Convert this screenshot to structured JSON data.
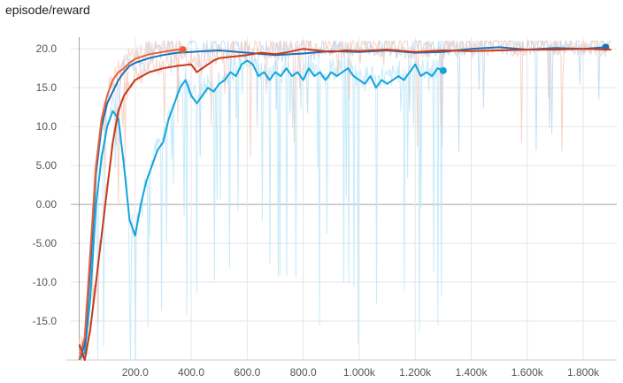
{
  "header": {
    "title": "episode/reward"
  },
  "chart_data": {
    "type": "line",
    "title": "episode/reward",
    "xlabel": "",
    "ylabel": "",
    "xlim": [
      -30,
      1920
    ],
    "ylim": [
      -20,
      21.5
    ],
    "x_ticks": [
      {
        "value": 200,
        "label": "200.0"
      },
      {
        "value": 400,
        "label": "400.0"
      },
      {
        "value": 600,
        "label": "600.0"
      },
      {
        "value": 800,
        "label": "800.0"
      },
      {
        "value": 1000,
        "label": "1.000k"
      },
      {
        "value": 1200,
        "label": "1.200k"
      },
      {
        "value": 1400,
        "label": "1.400k"
      },
      {
        "value": 1600,
        "label": "1.600k"
      },
      {
        "value": 1800,
        "label": "1.800k"
      }
    ],
    "y_ticks": [
      {
        "value": 20,
        "label": "20.0"
      },
      {
        "value": 15,
        "label": "15.0"
      },
      {
        "value": 10,
        "label": "10.0"
      },
      {
        "value": 5,
        "label": "5.00"
      },
      {
        "value": 0,
        "label": "0.00"
      },
      {
        "value": -5,
        "label": "-5.00"
      },
      {
        "value": -10,
        "label": "-10.0"
      },
      {
        "value": -15,
        "label": "-15.0"
      }
    ],
    "grid": true,
    "series": [
      {
        "color": "#12a4dc",
        "end_marker": true,
        "x": [
          0,
          20,
          40,
          60,
          80,
          100,
          120,
          140,
          160,
          180,
          200,
          220,
          240,
          260,
          280,
          300,
          320,
          340,
          360,
          380,
          400,
          420,
          440,
          460,
          480,
          500,
          520,
          540,
          560,
          580,
          600,
          620,
          640,
          660,
          680,
          700,
          720,
          740,
          760,
          780,
          800,
          820,
          840,
          860,
          880,
          900,
          920,
          940,
          960,
          980,
          1000,
          1020,
          1040,
          1060,
          1080,
          1100,
          1120,
          1140,
          1160,
          1180,
          1200,
          1220,
          1240,
          1260,
          1280,
          1300
        ],
        "y": [
          -20,
          -19,
          -12,
          0,
          6,
          10,
          12,
          11,
          5,
          -2,
          -4,
          0,
          3,
          5,
          7,
          8,
          11,
          13,
          15,
          16,
          14,
          13,
          14,
          15,
          14.5,
          15.5,
          16,
          17,
          16.5,
          18,
          18.5,
          18,
          16.5,
          17,
          16,
          17,
          16.5,
          17.5,
          16.5,
          17,
          16,
          17.5,
          16.5,
          17,
          16,
          17,
          16.5,
          17,
          17.5,
          16.5,
          16,
          15.5,
          16.5,
          15,
          16,
          15.5,
          16,
          16.5,
          16,
          17,
          18,
          16.5,
          17,
          16.5,
          17.5,
          17.2
        ]
      },
      {
        "color": "#1f6fb4",
        "end_marker": true,
        "x": [
          0,
          20,
          40,
          60,
          80,
          100,
          120,
          140,
          160,
          180,
          200,
          250,
          300,
          350,
          400,
          450,
          500,
          600,
          700,
          800,
          900,
          1000,
          1100,
          1200,
          1300,
          1400,
          1500,
          1600,
          1700,
          1800,
          1880
        ],
        "y": [
          -20,
          -18,
          -8,
          4,
          10,
          13,
          14.5,
          16,
          17,
          17.8,
          18.2,
          18.8,
          19.2,
          19.5,
          19.6,
          19.7,
          19.8,
          19.5,
          19.2,
          19.4,
          19.7,
          19.6,
          19.8,
          19.5,
          19.6,
          20,
          20.2,
          19.9,
          20.1,
          20,
          20.2
        ]
      },
      {
        "color": "#e8613a",
        "end_marker": true,
        "x": [
          0,
          20,
          40,
          60,
          80,
          100,
          120,
          140,
          160,
          180,
          200,
          250,
          300,
          350,
          370
        ],
        "y": [
          -20,
          -17,
          -6,
          5,
          11,
          14,
          16,
          17,
          17.5,
          18.2,
          18.7,
          19.3,
          19.6,
          19.9,
          19.9
        ]
      },
      {
        "color": "#c7391b",
        "end_marker": false,
        "x": [
          0,
          20,
          40,
          60,
          80,
          100,
          120,
          140,
          160,
          180,
          200,
          250,
          300,
          350,
          400,
          420,
          440,
          460,
          480,
          500,
          550,
          600,
          650,
          700,
          750,
          800,
          850,
          900,
          950,
          1000,
          1100,
          1200,
          1300,
          1400,
          1500,
          1600,
          1700,
          1800,
          1900
        ],
        "y": [
          -18,
          -20,
          -16,
          -10,
          -4,
          2,
          8,
          12,
          14,
          15,
          16,
          17,
          17.5,
          17.8,
          18,
          17,
          17.5,
          18,
          18.5,
          18.8,
          19,
          19.2,
          19.5,
          19.3,
          19.6,
          20,
          19.8,
          19.6,
          19.8,
          19.7,
          19.9,
          19.6,
          19.8,
          19.7,
          19.8,
          19.9,
          19.9,
          20,
          19.9
        ]
      }
    ]
  }
}
